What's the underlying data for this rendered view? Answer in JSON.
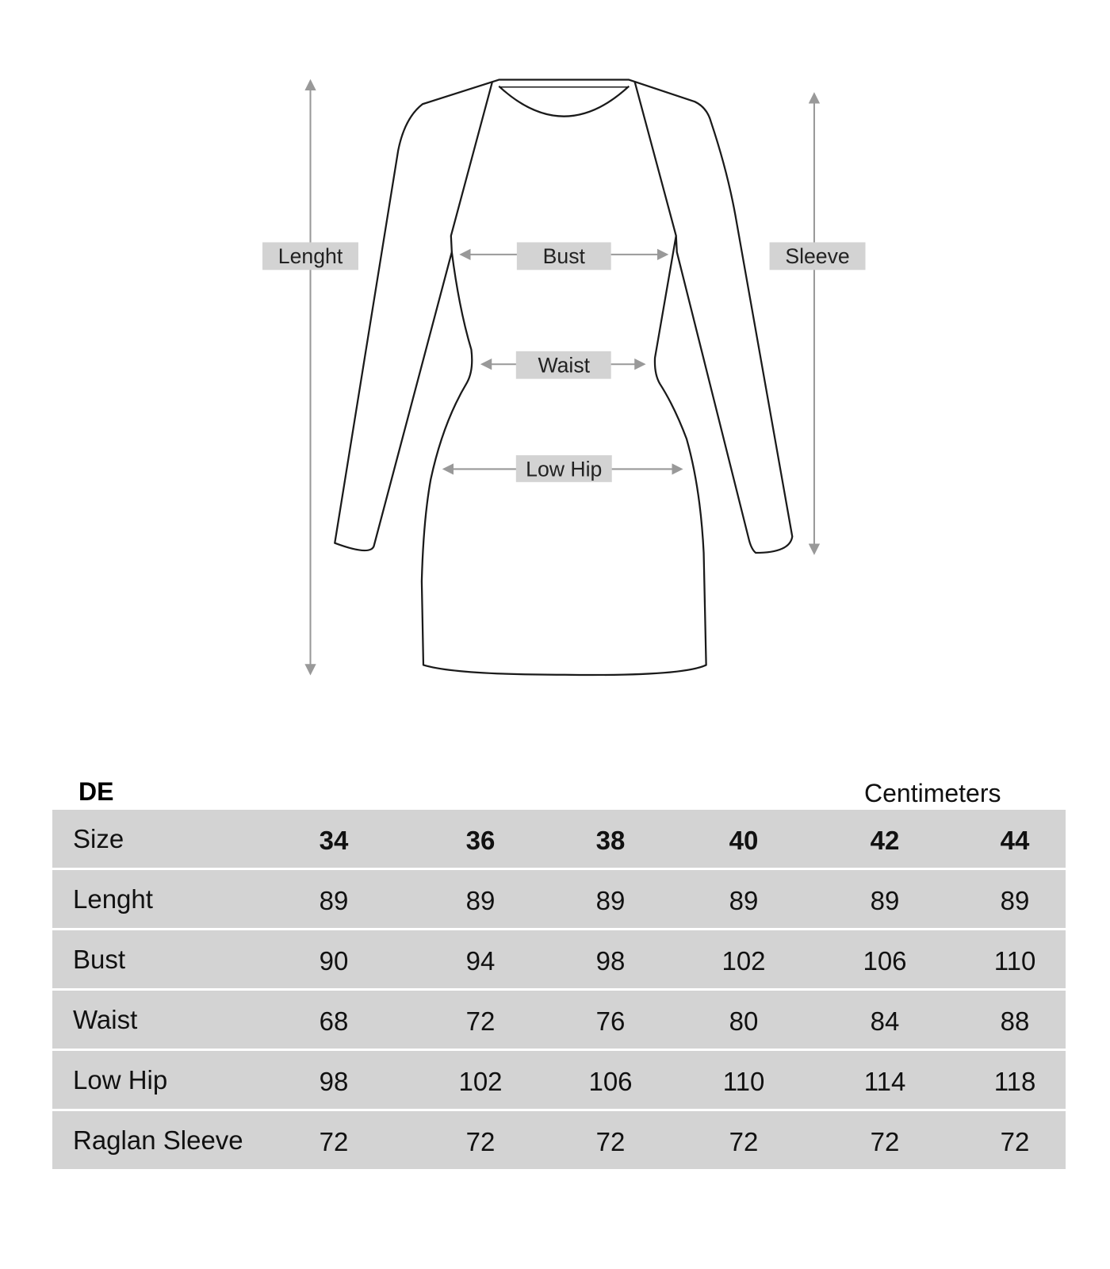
{
  "diagram": {
    "labels": {
      "length": "Lenght",
      "sleeve": "Sleeve",
      "bust": "Bust",
      "waist": "Waist",
      "low_hip": "Low Hip"
    },
    "colors": {
      "label_bg": "#d3d3d3",
      "arrow": "#999999",
      "outline": "#1a1a1a"
    }
  },
  "table": {
    "region": "DE",
    "unit": "Centimeters",
    "header": {
      "label": "Size",
      "sizes": [
        "34",
        "36",
        "38",
        "40",
        "42",
        "44"
      ]
    },
    "rows": [
      {
        "label": "Lenght",
        "values": [
          "89",
          "89",
          "89",
          "89",
          "89",
          "89"
        ]
      },
      {
        "label": "Bust",
        "values": [
          "90",
          "94",
          "98",
          "102",
          "106",
          "110"
        ]
      },
      {
        "label": "Waist",
        "values": [
          "68",
          "72",
          "76",
          "80",
          "84",
          "88"
        ]
      },
      {
        "label": "Low Hip",
        "values": [
          "98",
          "102",
          "106",
          "110",
          "114",
          "118"
        ]
      },
      {
        "label": "Raglan Sleeve",
        "values": [
          "72",
          "72",
          "72",
          "72",
          "72",
          "72"
        ]
      }
    ],
    "colors": {
      "row_bg": "#d3d3d3"
    }
  }
}
